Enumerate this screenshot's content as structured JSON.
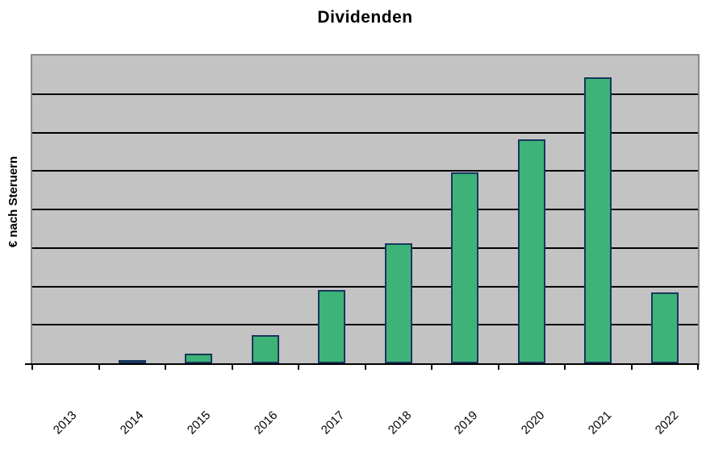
{
  "header": {
    "title": "Dividenden"
  },
  "axes": {
    "y_label": "€ nach Steruern"
  },
  "colors": {
    "bar_fill": "#3eb377",
    "bar_border": "#17375e",
    "plot_background": "#c3c3c3",
    "plot_border": "#8a8a8a",
    "gridline": "#000000",
    "axis": "#000000",
    "text": "#000000",
    "page_background": "#ffffff"
  },
  "chart_data": {
    "type": "bar",
    "title": "Dividenden",
    "xlabel": "",
    "ylabel": "€ nach Steruern",
    "categories": [
      "2013",
      "2014",
      "2015",
      "2016",
      "2017",
      "2018",
      "2019",
      "2020",
      "2021",
      "2022"
    ],
    "values": [
      0,
      0.08,
      0.25,
      0.73,
      1.9,
      3.13,
      4.96,
      5.83,
      7.44,
      1.85
    ],
    "ylim": [
      0,
      8
    ],
    "gridline_interval": 1,
    "y_tick_labels_visible": false,
    "value_units": "gridline-intervals (y-axis has no numeric tick labels)",
    "grid": "horizontal",
    "legend": "none",
    "x_label_rotation_deg": -45
  }
}
